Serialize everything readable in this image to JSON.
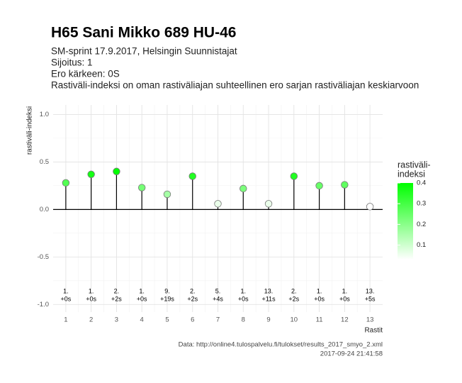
{
  "chart_data": {
    "type": "lollipop",
    "title": "H65 Sani Mikko 689 HU-46",
    "subtitle_lines": [
      "SM-sprint 17.9.2017, Helsingin Suunnistajat",
      "Sijoitus: 1",
      "Ero kärkeen: 0S",
      "Rastiväli-indeksi on oman rastiväliajan suhteellinen ero sarjan rastiväliajan keskiarvoon"
    ],
    "x_label": "Rastit",
    "y_label": "rastiväli-indeksi",
    "x": [
      1,
      2,
      3,
      4,
      5,
      6,
      7,
      8,
      9,
      10,
      11,
      12,
      13
    ],
    "values": [
      0.28,
      0.37,
      0.4,
      0.23,
      0.16,
      0.35,
      0.06,
      0.22,
      0.06,
      0.35,
      0.25,
      0.26,
      0.03
    ],
    "rank_labels": [
      "1.",
      "1.",
      "2.",
      "1.",
      "9.",
      "2.",
      "5.",
      "1.",
      "13.",
      "2.",
      "1.",
      "1.",
      "13."
    ],
    "diff_labels": [
      "+0s",
      "+0s",
      "+2s",
      "+0s",
      "+19s",
      "+2s",
      "+4s",
      "+0s",
      "+11s",
      "+2s",
      "+0s",
      "+0s",
      "+5s"
    ],
    "xlim": [
      0.5,
      13.5
    ],
    "ylim": [
      -1.08,
      1.1
    ],
    "xticks": [
      1,
      2,
      3,
      4,
      5,
      6,
      7,
      8,
      9,
      10,
      11,
      12,
      13
    ],
    "yticks": [
      {
        "value": -1,
        "label": "-1.0"
      },
      -0.5,
      {
        "value": 0,
        "label": "0.0"
      },
      0.5,
      {
        "value": 1,
        "label": "1.0"
      }
    ],
    "grid": true,
    "legend_title_lines": [
      "rastiväli-",
      "indeksi"
    ],
    "legend_ticks": [
      0.1,
      0.2,
      0.3,
      0.4
    ],
    "color_low": "#ffffff",
    "color_high": "#00ff00",
    "caption_lines": [
      "Data: http://online4.tulospalvelu.fi/tulokset/results_2017_smyo_2.xml",
      "2017-09-24 21:41:58"
    ]
  }
}
